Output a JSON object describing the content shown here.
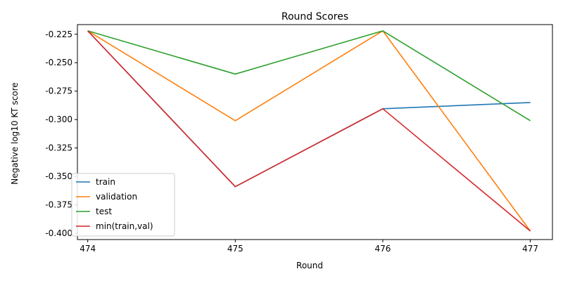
{
  "chart_data": {
    "type": "line",
    "title": "Round Scores",
    "xlabel": "Round",
    "ylabel": "Negative log10 KT score",
    "x": [
      474,
      475,
      476,
      477
    ],
    "x_ticks": [
      "474",
      "475",
      "476",
      "477"
    ],
    "y_ticks": [
      "-0.225",
      "-0.250",
      "-0.275",
      "-0.300",
      "-0.325",
      "-0.350",
      "-0.375",
      "-0.400"
    ],
    "ylim": [
      -0.4055,
      -0.2165
    ],
    "xlim": [
      473.93,
      477.15
    ],
    "grid": false,
    "legend_position": "lower-left",
    "series": [
      {
        "name": "train",
        "color": "#1f77b4",
        "values": [
          -0.222,
          -0.359,
          -0.2905,
          -0.285
        ]
      },
      {
        "name": "validation",
        "color": "#ff7f0e",
        "values": [
          -0.222,
          -0.301,
          -0.222,
          -0.398
        ]
      },
      {
        "name": "test",
        "color": "#2ca02c",
        "values": [
          -0.222,
          -0.26,
          -0.222,
          -0.301
        ]
      },
      {
        "name": "min(train,val)",
        "color": "#d62728",
        "values": [
          -0.222,
          -0.359,
          -0.2905,
          -0.398
        ]
      }
    ]
  }
}
